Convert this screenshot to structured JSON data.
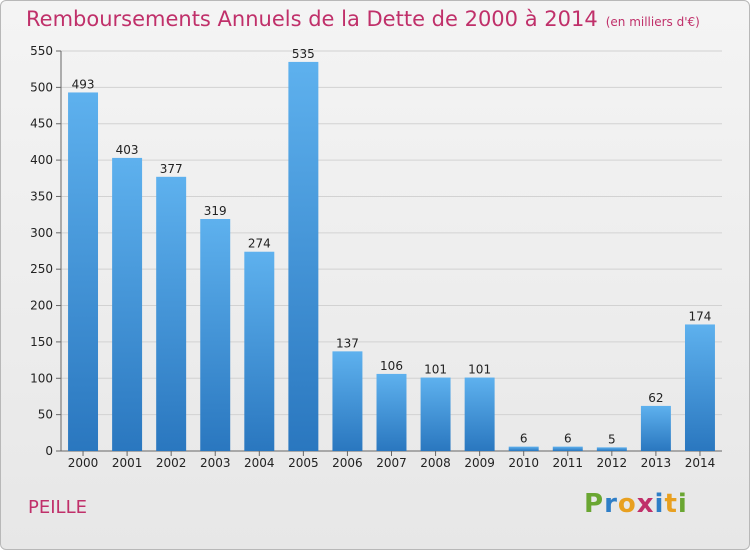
{
  "chart_data": {
    "type": "bar",
    "title": "Remboursements Annuels de la Dette de 2000 à 2014",
    "subtitle": "(en milliers d'€)",
    "categories": [
      "2000",
      "2001",
      "2002",
      "2003",
      "2004",
      "2005",
      "2006",
      "2007",
      "2008",
      "2009",
      "2010",
      "2011",
      "2012",
      "2013",
      "2014"
    ],
    "values": [
      493,
      403,
      377,
      319,
      274,
      535,
      137,
      106,
      101,
      101,
      6,
      6,
      5,
      62,
      174
    ],
    "ylim": [
      0,
      550
    ],
    "yticks": [
      0,
      50,
      100,
      150,
      200,
      250,
      300,
      350,
      400,
      450,
      500,
      550
    ],
    "grid": true,
    "bar_color": "#3d8fd6"
  },
  "footer": {
    "town": "PEILLE",
    "logo": "Proxiti"
  },
  "colors": {
    "title": "#c0306a",
    "logo_letters": [
      "#6aa632",
      "#2e7ec7",
      "#e8a020",
      "#c0306a",
      "#2e7ec7",
      "#e8a020",
      "#6aa632"
    ]
  }
}
